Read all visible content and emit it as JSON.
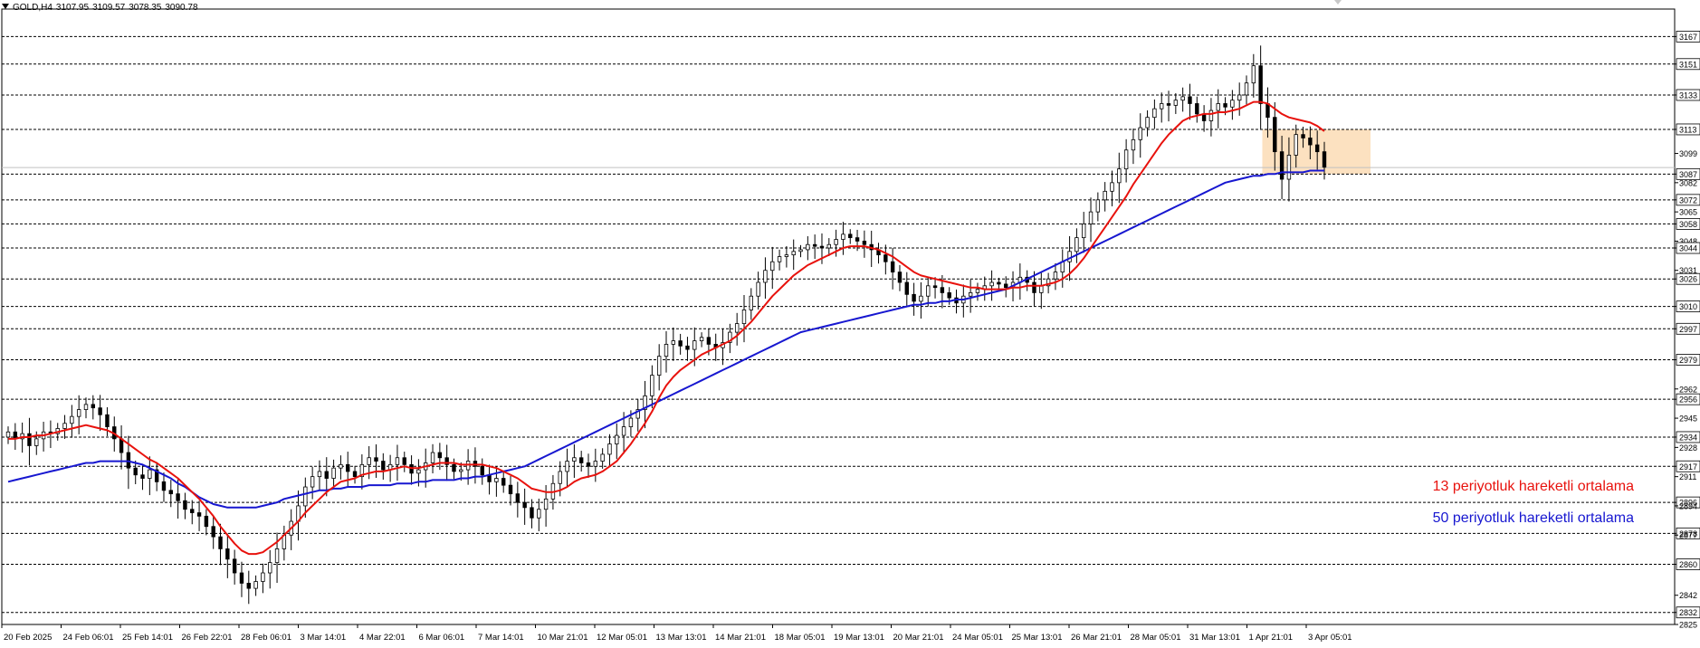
{
  "header": {
    "symbol": "GOLD,H4",
    "open": "3107.95",
    "high": "3109.57",
    "low": "3078.35",
    "close": "3090.78"
  },
  "annotations": {
    "ma13": "13 periyotluk hareketli ortalama",
    "ma50": "50 periyotluk hareketli ortalama"
  },
  "colors": {
    "ma13": "#e8120d",
    "ma50": "#1717d0",
    "zone": "#fbd9b0",
    "bull": "#ffffff",
    "bear": "#000000",
    "level_line": "#000000"
  },
  "chart_data": {
    "type": "candlestick",
    "symbol": "GOLD",
    "timeframe": "H4",
    "ylim": [
      2825,
      3183
    ],
    "y_scale": "linear",
    "grid": false,
    "legend": "none",
    "price_axis_ticks": [
      "3167",
      "3151",
      "3133",
      "3113",
      "3099",
      "3087",
      "3082",
      "3072",
      "3065",
      "3058",
      "3048",
      "3044",
      "3031",
      "3026",
      "3010",
      "2997",
      "2979",
      "2962",
      "2956",
      "2945",
      "2934",
      "2928",
      "2917",
      "2911",
      "2896",
      "2894",
      "2878",
      "2877",
      "2860",
      "2842",
      "2832",
      "2825"
    ],
    "highlighted_levels": [
      3167,
      3151,
      3133,
      3113,
      3087,
      3072,
      3058,
      3044,
      3026,
      3010,
      2997,
      2979,
      2956,
      2934,
      2917,
      2896,
      2878,
      2860,
      2832
    ],
    "current_price_line": 3090.78,
    "x_tick_labels": [
      "20 Feb 2025",
      "24 Feb 06:01",
      "25 Feb 14:01",
      "26 Feb 22:01",
      "28 Feb 06:01",
      "3 Mar 14:01",
      "4 Mar 22:01",
      "6 Mar 06:01",
      "7 Mar 14:01",
      "10 Mar 21:01",
      "12 Mar 05:01",
      "13 Mar 13:01",
      "14 Mar 21:01",
      "18 Mar 05:01",
      "19 Mar 13:01",
      "20 Mar 21:01",
      "24 Mar 05:01",
      "25 Mar 13:01",
      "26 Mar 21:01",
      "28 Mar 05:01",
      "31 Mar 13:01",
      "1 Apr 21:01",
      "3 Apr 05:01"
    ],
    "closes": [
      2937,
      2933,
      2936,
      2929,
      2933,
      2937,
      2936,
      2939,
      2942,
      2946,
      2950,
      2953,
      2951,
      2947,
      2940,
      2933,
      2925,
      2916,
      2912,
      2910,
      2915,
      2908,
      2903,
      2901,
      2897,
      2892,
      2890,
      2888,
      2882,
      2876,
      2869,
      2863,
      2855,
      2849,
      2846,
      2850,
      2855,
      2861,
      2869,
      2877,
      2885,
      2894,
      2905,
      2911,
      2914,
      2910,
      2916,
      2918,
      2914,
      2911,
      2918,
      2922,
      2920,
      2915,
      2918,
      2922,
      2918,
      2913,
      2915,
      2919,
      2925,
      2922,
      2918,
      2914,
      2915,
      2920,
      2917,
      2912,
      2908,
      2910,
      2906,
      2901,
      2896,
      2893,
      2887,
      2892,
      2898,
      2907,
      2914,
      2920,
      2922,
      2919,
      2917,
      2920,
      2924,
      2930,
      2935,
      2940,
      2945,
      2950,
      2958,
      2970,
      2981,
      2988,
      2990,
      2987,
      2985,
      2990,
      2992,
      2988,
      2986,
      2989,
      2995,
      3000,
      3008,
      3016,
      3024,
      3031,
      3036,
      3039,
      3040,
      3042,
      3043,
      3046,
      3045,
      3044,
      3046,
      3049,
      3052,
      3050,
      3048,
      3046,
      3043,
      3040,
      3036,
      3030,
      3024,
      3017,
      3013,
      3016,
      3022,
      3021,
      3018,
      3015,
      3012,
      3016,
      3018,
      3020,
      3022,
      3024,
      3023,
      3021,
      3024,
      3027,
      3024,
      3018,
      3022,
      3026,
      3030,
      3036,
      3042,
      3050,
      3058,
      3065,
      3072,
      3077,
      3082,
      3090,
      3101,
      3107,
      3114,
      3120,
      3125,
      3128,
      3127,
      3130,
      3132,
      3128,
      3122,
      3118,
      3124,
      3128,
      3126,
      3130,
      3133,
      3140,
      3150,
      3128,
      3120,
      3100,
      3084,
      3098,
      3110,
      3108,
      3104,
      3100,
      3091
    ],
    "ma13": [
      2933,
      2933,
      2934,
      2934,
      2935,
      2935,
      2936,
      2937,
      2938,
      2939,
      2940,
      2941,
      2940,
      2939,
      2938,
      2936,
      2933,
      2930,
      2927,
      2924,
      2921,
      2919,
      2916,
      2913,
      2910,
      2906,
      2902,
      2898,
      2893,
      2888,
      2882,
      2877,
      2872,
      2868,
      2866,
      2866,
      2867,
      2870,
      2873,
      2877,
      2881,
      2885,
      2890,
      2894,
      2898,
      2902,
      2905,
      2908,
      2909,
      2910,
      2912,
      2913,
      2914,
      2914,
      2915,
      2916,
      2917,
      2916,
      2916,
      2917,
      2918,
      2919,
      2919,
      2919,
      2918,
      2918,
      2918,
      2918,
      2917,
      2916,
      2914,
      2912,
      2910,
      2907,
      2904,
      2903,
      2902,
      2902,
      2903,
      2905,
      2908,
      2910,
      2911,
      2912,
      2914,
      2917,
      2920,
      2925,
      2930,
      2936,
      2942,
      2949,
      2957,
      2964,
      2969,
      2973,
      2976,
      2979,
      2982,
      2984,
      2986,
      2988,
      2990,
      2993,
      2997,
      3001,
      3006,
      3011,
      3016,
      3020,
      3024,
      3028,
      3031,
      3034,
      3036,
      3038,
      3040,
      3042,
      3044,
      3045,
      3045,
      3045,
      3044,
      3043,
      3041,
      3039,
      3036,
      3033,
      3030,
      3028,
      3027,
      3026,
      3025,
      3024,
      3023,
      3022,
      3021,
      3021,
      3020,
      3020,
      3020,
      3020,
      3021,
      3021,
      3022,
      3022,
      3022,
      3023,
      3024,
      3026,
      3029,
      3033,
      3038,
      3044,
      3050,
      3056,
      3062,
      3068,
      3074,
      3081,
      3087,
      3093,
      3099,
      3105,
      3110,
      3114,
      3118,
      3120,
      3121,
      3122,
      3122,
      3123,
      3123,
      3124,
      3125,
      3127,
      3129,
      3129,
      3128,
      3125,
      3122,
      3120,
      3119,
      3118,
      3117,
      3115,
      3112
    ],
    "ma50": [
      2908,
      2909,
      2910,
      2911,
      2912,
      2913,
      2914,
      2915,
      2916,
      2917,
      2918,
      2919,
      2919,
      2920,
      2920,
      2920,
      2920,
      2920,
      2919,
      2918,
      2916,
      2914,
      2912,
      2910,
      2907,
      2905,
      2902,
      2899,
      2897,
      2895,
      2894,
      2893,
      2893,
      2893,
      2893,
      2893,
      2894,
      2895,
      2896,
      2898,
      2899,
      2900,
      2901,
      2902,
      2903,
      2903,
      2904,
      2904,
      2905,
      2905,
      2905,
      2906,
      2906,
      2906,
      2906,
      2907,
      2907,
      2907,
      2908,
      2908,
      2909,
      2909,
      2909,
      2909,
      2910,
      2910,
      2911,
      2911,
      2912,
      2913,
      2914,
      2915,
      2916,
      2917,
      2919,
      2921,
      2923,
      2925,
      2927,
      2929,
      2931,
      2933,
      2935,
      2937,
      2939,
      2941,
      2943,
      2945,
      2947,
      2949,
      2951,
      2953,
      2955,
      2957,
      2959,
      2961,
      2963,
      2965,
      2967,
      2969,
      2971,
      2973,
      2975,
      2977,
      2979,
      2981,
      2983,
      2985,
      2987,
      2989,
      2991,
      2993,
      2995,
      2996,
      2997,
      2998,
      2999,
      3000,
      3001,
      3002,
      3003,
      3004,
      3005,
      3006,
      3007,
      3008,
      3009,
      3010,
      3011,
      3011,
      3012,
      3012,
      3013,
      3013,
      3014,
      3014,
      3015,
      3016,
      3017,
      3018,
      3019,
      3020,
      3022,
      3024,
      3026,
      3028,
      3030,
      3032,
      3034,
      3036,
      3038,
      3040,
      3042,
      3044,
      3046,
      3048,
      3050,
      3052,
      3054,
      3056,
      3058,
      3060,
      3062,
      3064,
      3066,
      3068,
      3070,
      3072,
      3074,
      3076,
      3078,
      3080,
      3082,
      3083,
      3084,
      3085,
      3086,
      3086,
      3087,
      3087,
      3088,
      3088,
      3088,
      3088,
      3089,
      3089,
      3089
    ]
  }
}
